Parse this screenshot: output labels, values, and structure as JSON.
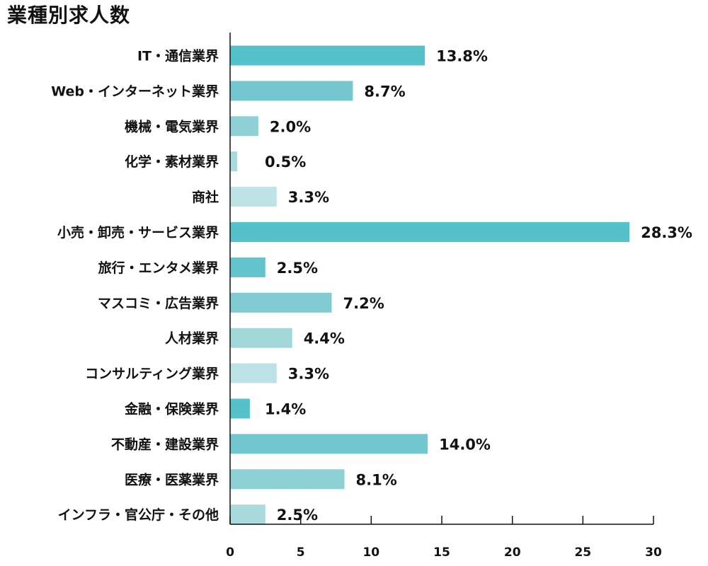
{
  "chart_data": {
    "type": "bar",
    "orientation": "horizontal",
    "title": "業種別求人数",
    "xlabel": "",
    "ylabel": "",
    "xlim": [
      0,
      30
    ],
    "xticks": [
      0,
      5,
      10,
      15,
      20,
      25,
      30
    ],
    "grid": false,
    "legend": "none",
    "categories": [
      "IT・通信業界",
      "Web・インターネット業界",
      "機械・電気業界",
      "化学・素材業界",
      "商社",
      "小売・卸売・サービス業界",
      "旅行・エンタメ業界",
      "マスコミ・広告業界",
      "人材業界",
      "コンサルティング業界",
      "金融・保険業界",
      "不動産・建設業界",
      "医療・医薬業界",
      "インフラ・官公庁・その他"
    ],
    "values": [
      13.8,
      8.7,
      2.0,
      0.5,
      3.3,
      28.3,
      2.5,
      7.2,
      4.4,
      3.3,
      1.4,
      14.0,
      8.1,
      2.5
    ],
    "value_labels": [
      "13.8%",
      "8.7%",
      "2.0%",
      "0.5%",
      "3.3%",
      "28.3%",
      "2.5%",
      "7.2%",
      "4.4%",
      "3.3%",
      "1.4%",
      "14.0%",
      "8.1%",
      "2.5%"
    ],
    "bar_colors": [
      "#55c1c9",
      "#75c8cf",
      "#8fd0d6",
      "#a8dadd",
      "#bfe3e5",
      "#55c1c9",
      "#65c4cb",
      "#80ccd2",
      "#a2d7da",
      "#bbe2e4",
      "#55c1c9",
      "#71c7cd",
      "#8dd0d5",
      "#a9dadd"
    ]
  },
  "colors": {
    "axis": "#111111",
    "text": "#111111"
  }
}
